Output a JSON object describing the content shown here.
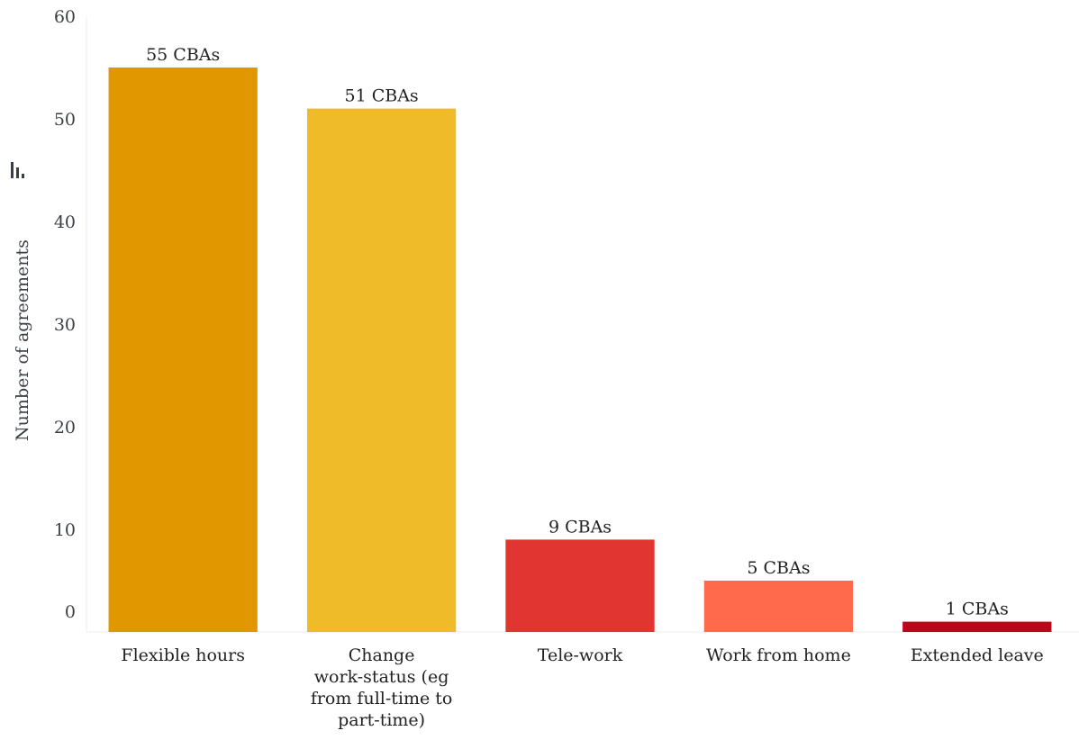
{
  "chart_data": {
    "type": "bar",
    "categories": [
      [
        "Flexible hours"
      ],
      [
        "Change",
        "work-status (eg",
        "from full-time to",
        "part-time)"
      ],
      [
        "Tele-work"
      ],
      [
        "Work from home"
      ],
      [
        "Extended leave"
      ]
    ],
    "values": [
      55,
      51,
      9,
      5,
      1
    ],
    "data_labels": [
      "55 CBAs",
      "51 CBAs",
      "9 CBAs",
      "5 CBAs",
      "1 CBAs"
    ],
    "colors": [
      "#E19800",
      "#EFBB28",
      "#E03530",
      "#FF6A4D",
      "#B8081C"
    ],
    "ylabel": "Number of agreements",
    "ylim": [
      0,
      60
    ],
    "yticks": [
      0,
      10,
      20,
      30,
      40,
      50,
      60
    ],
    "grid": false,
    "legend": "none"
  },
  "toolbar": {
    "icon": "bar-chart-icon"
  }
}
